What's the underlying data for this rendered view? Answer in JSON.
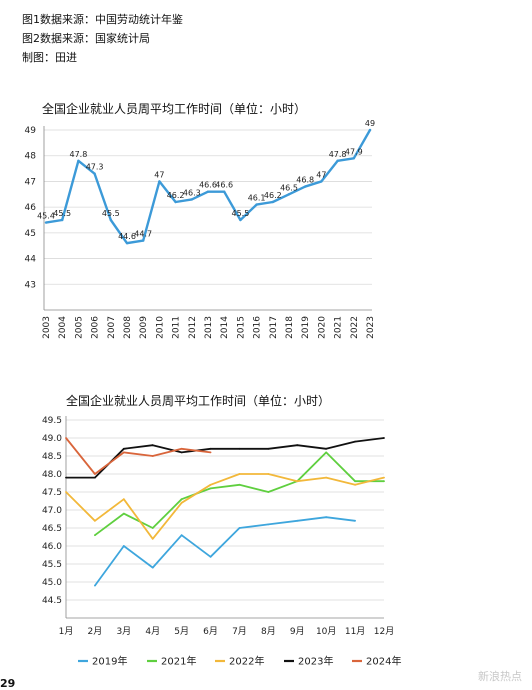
{
  "notes": {
    "line1": "图1数据来源：中国劳动统计年鉴",
    "line2": "图2数据来源：国家统计局",
    "line3": "制图：田进"
  },
  "footer": {
    "page_fragment": "29",
    "watermark": "新浪热点"
  },
  "chart_data": [
    {
      "type": "line",
      "title": "全国企业就业人员周平均工作时间（单位：小时）",
      "x": [
        "2003",
        "2004",
        "2005",
        "2006",
        "2007",
        "2008",
        "2009",
        "2010",
        "2011",
        "2012",
        "2013",
        "2014",
        "2015",
        "2016",
        "2017",
        "2018",
        "2019",
        "2020",
        "2021",
        "2022",
        "2023"
      ],
      "values": [
        45.4,
        45.5,
        47.8,
        47.3,
        45.5,
        44.6,
        44.7,
        47,
        46.2,
        46.3,
        46.6,
        46.6,
        45.5,
        46.1,
        46.2,
        46.5,
        46.8,
        47,
        47.8,
        47.9,
        49
      ],
      "data_labels": [
        "45.4",
        "45.5",
        "47.8",
        "47.3",
        "45.5",
        "44.6",
        "44.7",
        "47",
        "46.2",
        "46.3",
        "46.6",
        "46.6",
        "45.5",
        "46.1",
        "46.2",
        "46.5",
        "46.8",
        "47",
        "47.8",
        "47.9",
        "49"
      ],
      "y_ticks": [
        "43",
        "44",
        "45",
        "46",
        "47",
        "48",
        "49"
      ],
      "ylim": [
        42,
        49
      ],
      "color": "#3c9ad8",
      "grid": true,
      "legend": "none"
    },
    {
      "type": "line",
      "title": "全国企业就业人员周平均工作时间（单位：小时）",
      "categories": [
        "1月",
        "2月",
        "3月",
        "4月",
        "5月",
        "6月",
        "7月",
        "8月",
        "9月",
        "10月",
        "11月",
        "12月"
      ],
      "y_ticks": [
        "44.5",
        "45.0",
        "45.5",
        "46.0",
        "46.5",
        "47.0",
        "47.5",
        "48.0",
        "48.5",
        "49.0",
        "49.5"
      ],
      "ylim": [
        44,
        49.5
      ],
      "grid": true,
      "legend": "bottom",
      "series": [
        {
          "name": "2019年",
          "color": "#3ea6dd",
          "values": [
            null,
            44.9,
            46.0,
            45.4,
            46.3,
            45.7,
            46.5,
            46.6,
            46.7,
            46.8,
            46.7,
            null
          ]
        },
        {
          "name": "2021年",
          "color": "#5fcf3f",
          "values": [
            null,
            46.3,
            46.9,
            46.5,
            47.3,
            47.6,
            47.7,
            47.5,
            47.8,
            48.6,
            47.8,
            47.8
          ]
        },
        {
          "name": "2022年",
          "color": "#f2b83a",
          "values": [
            47.5,
            46.7,
            47.3,
            46.2,
            47.2,
            47.7,
            48.0,
            48.0,
            47.8,
            47.9,
            47.7,
            47.9
          ]
        },
        {
          "name": "2023年",
          "color": "#111111",
          "values": [
            47.9,
            47.9,
            48.7,
            48.8,
            48.6,
            48.7,
            48.7,
            48.7,
            48.8,
            48.7,
            48.9,
            49.0
          ]
        },
        {
          "name": "2024年",
          "color": "#d9653b",
          "values": [
            49.0,
            48.0,
            48.6,
            48.5,
            48.7,
            48.6,
            null,
            null,
            null,
            null,
            null,
            null
          ]
        }
      ]
    }
  ]
}
